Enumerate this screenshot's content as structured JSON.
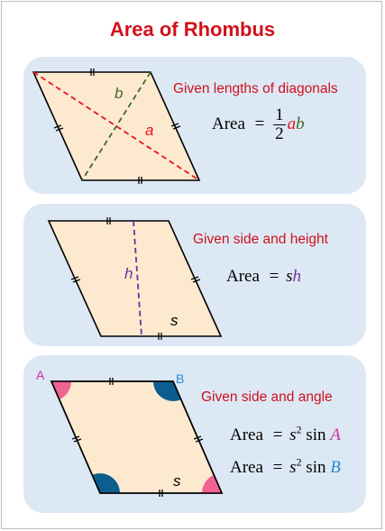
{
  "title": "Area of Rhombus",
  "colors": {
    "title": "#d0111b",
    "panel": "#dde8f5",
    "shape_fill": "#fde9cf",
    "diag_a": "#e8141e",
    "diag_b": "#3d6b22",
    "height": "#7030a0",
    "angle_pink": "#f06292",
    "angle_blue": "#0b5e8e",
    "label_A": "#cc2ea1",
    "label_B": "#2a8ad2"
  },
  "panels": [
    {
      "caption": "Given lengths of diagonals",
      "labels": {
        "b": "b",
        "a": "a"
      },
      "formula": {
        "lhs": "Area",
        "eq": "=",
        "num": "1",
        "den": "2",
        "var1": "a",
        "var2": "b"
      }
    },
    {
      "caption": "Given side and height",
      "labels": {
        "h": "h",
        "s": "s"
      },
      "formula": {
        "lhs": "Area",
        "eq": "=",
        "var1": "s",
        "var2": "h"
      }
    },
    {
      "caption": "Given side and angle",
      "labels": {
        "A": "A",
        "B": "B",
        "s": "s"
      },
      "formula1": {
        "lhs": "Area",
        "eq": "=",
        "s": "s",
        "exp": "2",
        "fn": "sin",
        "ang": "A"
      },
      "formula2": {
        "lhs": "Area",
        "eq": "=",
        "s": "s",
        "exp": "2",
        "fn": "sin",
        "ang": "B"
      }
    }
  ]
}
